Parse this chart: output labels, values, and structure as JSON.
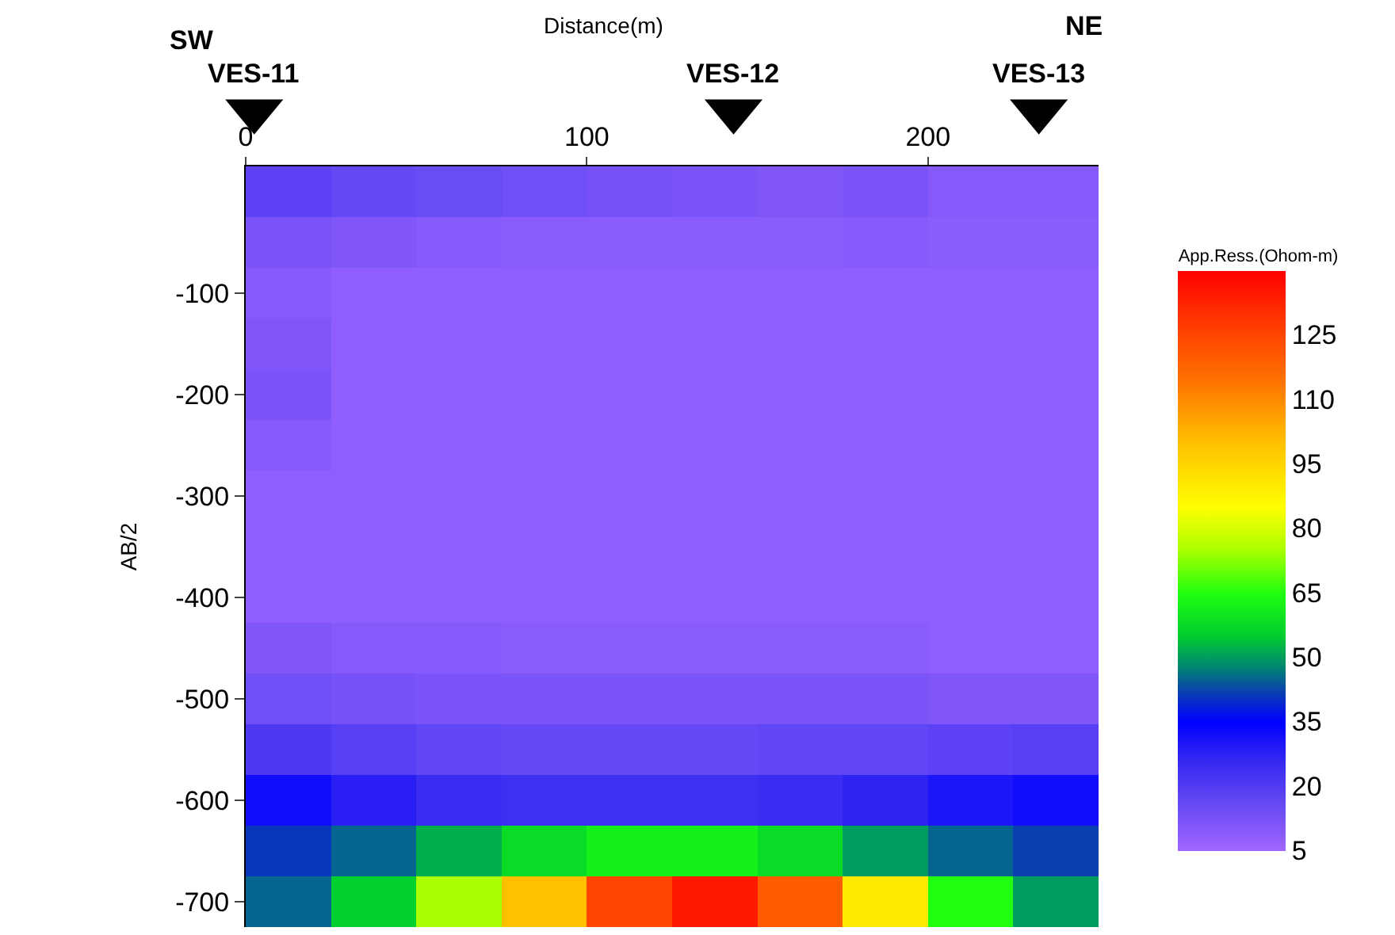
{
  "chart_data": {
    "type": "heatmap",
    "xlabel": "Distance(m)",
    "ylabel": "AB/2",
    "clabel": "App.Ress.(Ohom-m)",
    "x": [
      12.5,
      37.5,
      62.5,
      87.5,
      112.5,
      137.5,
      162.5,
      187.5,
      212.5,
      237.5
    ],
    "y_categories": [
      null,
      null,
      "-100",
      null,
      "-200",
      null,
      "-300",
      null,
      "-400",
      null,
      "-500",
      null,
      "-600",
      null,
      "-700"
    ],
    "cells": [
      [
        18,
        16,
        15,
        14,
        13,
        12,
        11,
        12,
        10,
        10
      ],
      [
        12,
        11,
        10,
        9,
        9,
        9,
        9,
        10,
        9,
        9
      ],
      [
        10,
        8,
        8,
        8,
        8,
        8,
        8,
        8,
        8,
        8
      ],
      [
        11,
        8,
        8,
        8,
        8,
        8,
        8,
        8,
        8,
        8
      ],
      [
        12,
        8,
        8,
        8,
        8,
        8,
        8,
        8,
        8,
        8
      ],
      [
        10,
        8,
        8,
        8,
        8,
        8,
        8,
        8,
        8,
        8
      ],
      [
        8,
        8,
        8,
        8,
        8,
        8,
        8,
        8,
        8,
        8
      ],
      [
        8,
        8,
        8,
        8,
        8,
        8,
        8,
        8,
        8,
        8
      ],
      [
        8,
        8,
        8,
        8,
        8,
        8,
        8,
        8,
        8,
        8
      ],
      [
        11,
        10,
        10,
        9,
        9,
        9,
        9,
        9,
        8,
        8
      ],
      [
        14,
        13,
        12,
        12,
        12,
        12,
        12,
        12,
        11,
        11
      ],
      [
        21,
        19,
        17,
        16,
        16,
        16,
        17,
        17,
        18,
        19
      ],
      [
        32,
        28,
        25,
        24,
        24,
        24,
        25,
        27,
        30,
        32
      ],
      [
        41,
        45,
        52,
        58,
        62,
        62,
        58,
        50,
        45,
        42
      ],
      [
        45,
        56,
        75,
        100,
        125,
        135,
        120,
        90,
        65,
        50
      ]
    ],
    "xlim": [
      0,
      250
    ],
    "xticks": [
      0,
      100,
      200
    ],
    "clim": [
      5,
      140
    ],
    "cticks": [
      5,
      20,
      35,
      50,
      65,
      80,
      95,
      110,
      125
    ],
    "annotations": [
      "SW",
      "NE",
      "VES-11",
      "VES-12",
      "VES-13"
    ]
  }
}
